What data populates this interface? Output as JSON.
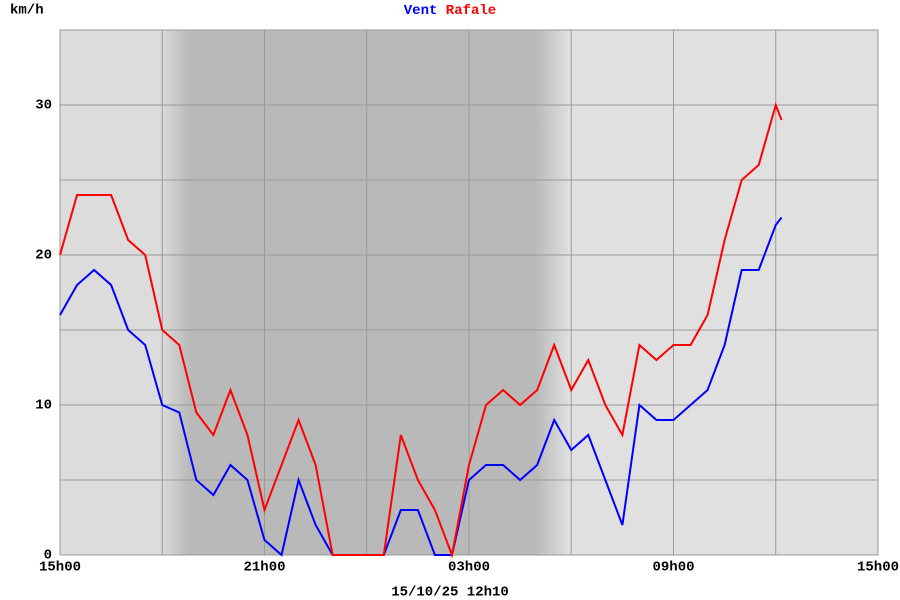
{
  "chart_data": {
    "type": "line",
    "title_label": "km/h",
    "subtitle": "15/10/25 12h10",
    "x": [
      15,
      15.5,
      16,
      16.5,
      17,
      17.5,
      18,
      18.5,
      19,
      19.5,
      20,
      20.5,
      21,
      21.5,
      22,
      22.5,
      23,
      23.5,
      24,
      24.5,
      25,
      25.5,
      26,
      26.5,
      27,
      27.5,
      28,
      28.5,
      29,
      29.5,
      30,
      30.5,
      31,
      31.5,
      32,
      32.5,
      33,
      33.5,
      34,
      34.5,
      35,
      35.5,
      36,
      36.17
    ],
    "series": [
      {
        "name": "Vent",
        "color": "#0000ff",
        "values": [
          16,
          18,
          19,
          18,
          15,
          14,
          10,
          9.5,
          5,
          4,
          6,
          5,
          1,
          0,
          5,
          2,
          0,
          0,
          0,
          0,
          3,
          3,
          0,
          0,
          5,
          6,
          6,
          5,
          6,
          9,
          7,
          8,
          5,
          2,
          10,
          9,
          9,
          10,
          11,
          14,
          19,
          19,
          22,
          22.5
        ]
      },
      {
        "name": "Rafale",
        "color": "#ff0000",
        "values": [
          20,
          24,
          24,
          24,
          21,
          20,
          15,
          14,
          9.5,
          8,
          11,
          8,
          3,
          6,
          9,
          6,
          0,
          0,
          0,
          0,
          8,
          5,
          3,
          0,
          6,
          10,
          11,
          10,
          11,
          14,
          11,
          13,
          10,
          8,
          14,
          13,
          14,
          14,
          16,
          21,
          25,
          26,
          30,
          29
        ]
      }
    ],
    "xlim": [
      15,
      39
    ],
    "xticks": [
      {
        "value": 15,
        "label": "15h00"
      },
      {
        "value": 21,
        "label": "21h00"
      },
      {
        "value": 27,
        "label": "03h00"
      },
      {
        "value": 33,
        "label": "09h00"
      },
      {
        "value": 39,
        "label": "15h00"
      }
    ],
    "x_minor_grid": [
      18,
      24,
      30,
      36
    ],
    "ylim": [
      0,
      35
    ],
    "yticks": [
      0,
      10,
      20,
      30
    ],
    "y_minor_grid": [
      5,
      15,
      25
    ],
    "grid": true
  }
}
